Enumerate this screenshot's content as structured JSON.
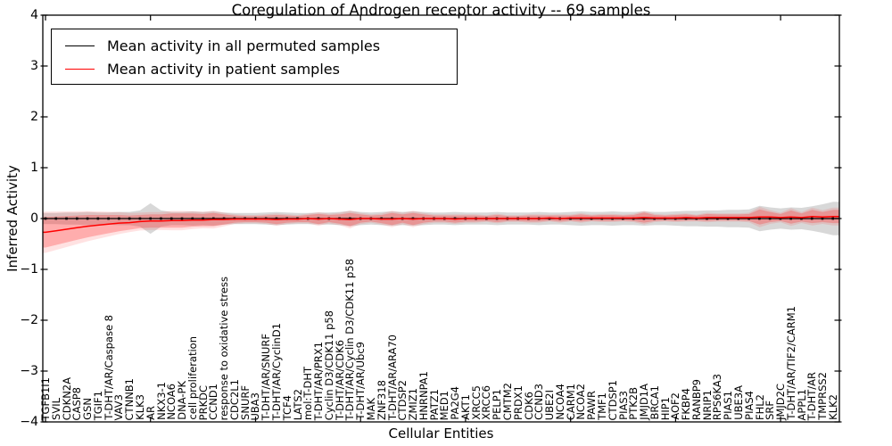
{
  "figure": {
    "title": "Coregulation of Androgen receptor activity -- 69 samples",
    "xlabel": "Cellular Entities",
    "ylabel": "Inferred Activity"
  },
  "legend": {
    "entries": [
      {
        "label": "Mean activity in all permuted samples",
        "color": "#000000"
      },
      {
        "label": "Mean activity in patient samples",
        "color": "#ff0000"
      }
    ]
  },
  "chart_data": {
    "type": "line",
    "title": "Coregulation of Androgen receptor activity -- 69 samples",
    "xlabel": "Cellular Entities",
    "ylabel": "Inferred Activity",
    "ylim": [
      -4,
      4
    ],
    "ytick_values": [
      4,
      3,
      2,
      1,
      0,
      -1,
      -2,
      -3,
      -4
    ],
    "ytick_labels": [
      "4",
      "3",
      "2",
      "1",
      "0",
      "−1",
      "−2",
      "−3",
      "−4"
    ],
    "grid": false,
    "legend_position": "upper left",
    "band_colors": {
      "permuted": "#999999",
      "patient": "#ff3333"
    },
    "categories": [
      "TGFB1I1",
      "SVIL",
      "CDKN2A",
      "CASP8",
      "GSN",
      "TGIF1",
      "T-DHT/AR/Caspase 8",
      "VAV3",
      "CTNNB1",
      "KLK3",
      "AR",
      "NKX3-1",
      "NCOA6",
      "DNA-PK",
      "cell proliferation",
      "PRKDC",
      "CCND1",
      "response to oxidative stress",
      "CDC2L1",
      "SNURF",
      "UBA3",
      "T-DHT/AR/SNURF",
      "T-DHT/AR/CyclinD1",
      "TCF4",
      "LATS2",
      "mol:T-DHT",
      "T-DHT/AR/PRX1",
      "Cyclin D3/CDK11 p58",
      "T-DHT/AR/CDK6",
      "T-DHT/AR/Cyclin D3/CDK11 p58",
      "T-DHT/AR/Ubc9",
      "MAK",
      "ZNF318",
      "T-DHT/AR/ARA70",
      "CTDSP2",
      "ZMIZ1",
      "HNRNPA1",
      "PATZ1",
      "MED1",
      "PA2G4",
      "AKT1",
      "XRCC5",
      "XRCC6",
      "PELP1",
      "CMTM2",
      "PRDX1",
      "CDK6",
      "CCND3",
      "UBE2I",
      "NCOA4",
      "CARM1",
      "NCOA2",
      "PAWR",
      "TMF1",
      "CTDSP1",
      "PIAS3",
      "PTK2B",
      "JMJD1A",
      "BRCA1",
      "HIP1",
      "AOF2",
      "FKBP4",
      "RANBP9",
      "NRIP1",
      "RPS6KA3",
      "PIAS1",
      "UBE3A",
      "PIAS4",
      "FHL2",
      "SRF",
      "JMJD2C",
      "T-DHT/AR/TIF2/CARM1",
      "APPL1",
      "T-DHT/AR",
      "TMPRSS2",
      "KLK2"
    ],
    "series": [
      {
        "name": "Mean activity in all permuted samples",
        "color": "#000000",
        "mean": [
          0,
          0,
          0,
          0,
          0,
          0,
          0,
          0,
          0,
          0,
          0,
          0,
          0,
          0,
          0,
          0,
          0,
          0,
          0,
          0,
          0,
          0,
          0,
          0,
          0,
          0,
          0,
          0,
          0,
          0,
          0,
          0,
          0,
          0,
          0,
          0,
          0,
          0,
          0,
          0,
          0,
          0,
          0,
          0,
          0,
          0,
          0,
          0,
          0,
          0,
          0,
          0,
          0,
          0,
          0,
          0,
          0,
          0,
          0,
          0,
          0,
          0,
          0,
          0,
          0,
          0,
          0,
          0,
          0,
          0,
          0,
          0,
          0,
          0,
          0,
          0
        ],
        "std": [
          0.11,
          0.11,
          0.12,
          0.12,
          0.13,
          0.12,
          0.12,
          0.13,
          0.13,
          0.16,
          0.3,
          0.16,
          0.13,
          0.13,
          0.14,
          0.13,
          0.14,
          0.12,
          0.11,
          0.11,
          0.11,
          0.12,
          0.13,
          0.12,
          0.11,
          0.11,
          0.12,
          0.12,
          0.13,
          0.15,
          0.13,
          0.12,
          0.13,
          0.14,
          0.13,
          0.14,
          0.13,
          0.12,
          0.12,
          0.13,
          0.12,
          0.12,
          0.12,
          0.13,
          0.12,
          0.12,
          0.12,
          0.13,
          0.12,
          0.12,
          0.13,
          0.14,
          0.13,
          0.13,
          0.14,
          0.13,
          0.13,
          0.14,
          0.13,
          0.13,
          0.14,
          0.15,
          0.15,
          0.16,
          0.16,
          0.17,
          0.17,
          0.18,
          0.25,
          0.22,
          0.2,
          0.22,
          0.21,
          0.24,
          0.28,
          0.33
        ]
      },
      {
        "name": "Mean activity in patient samples",
        "color": "#ff0000",
        "mean": [
          -0.27,
          -0.24,
          -0.21,
          -0.18,
          -0.15,
          -0.13,
          -0.11,
          -0.09,
          -0.08,
          -0.06,
          -0.05,
          -0.05,
          -0.04,
          -0.04,
          -0.03,
          -0.03,
          -0.02,
          -0.02,
          -0.01,
          -0.01,
          -0.01,
          -0.01,
          -0.02,
          -0.01,
          -0.01,
          0,
          -0.01,
          0,
          -0.01,
          -0.02,
          0,
          0,
          -0.01,
          -0.01,
          0,
          -0.01,
          0,
          0,
          0,
          -0.01,
          0,
          0,
          0,
          0,
          0,
          0,
          0,
          0,
          0.01,
          0,
          0.01,
          0.01,
          0.01,
          0.01,
          0.01,
          0.01,
          0.01,
          0.02,
          0.01,
          0.01,
          0.01,
          0.02,
          0.01,
          0.02,
          0.02,
          0.02,
          0.02,
          0.02,
          0.03,
          0.03,
          0.02,
          0.03,
          0.02,
          0.04,
          0.03,
          0.04
        ],
        "std": [
          0.3,
          0.28,
          0.26,
          0.24,
          0.22,
          0.2,
          0.18,
          0.16,
          0.14,
          0.13,
          0.13,
          0.13,
          0.14,
          0.14,
          0.13,
          0.12,
          0.13,
          0.1,
          0.07,
          0.06,
          0.06,
          0.07,
          0.09,
          0.07,
          0.06,
          0.07,
          0.1,
          0.07,
          0.09,
          0.13,
          0.08,
          0.06,
          0.08,
          0.12,
          0.08,
          0.12,
          0.08,
          0.06,
          0.06,
          0.07,
          0.06,
          0.06,
          0.05,
          0.07,
          0.05,
          0.05,
          0.06,
          0.06,
          0.05,
          0.06,
          0.05,
          0.07,
          0.05,
          0.06,
          0.06,
          0.05,
          0.06,
          0.1,
          0.06,
          0.05,
          0.06,
          0.06,
          0.05,
          0.07,
          0.06,
          0.06,
          0.06,
          0.07,
          0.15,
          0.1,
          0.07,
          0.13,
          0.08,
          0.13,
          0.1,
          0.13
        ]
      }
    ]
  }
}
